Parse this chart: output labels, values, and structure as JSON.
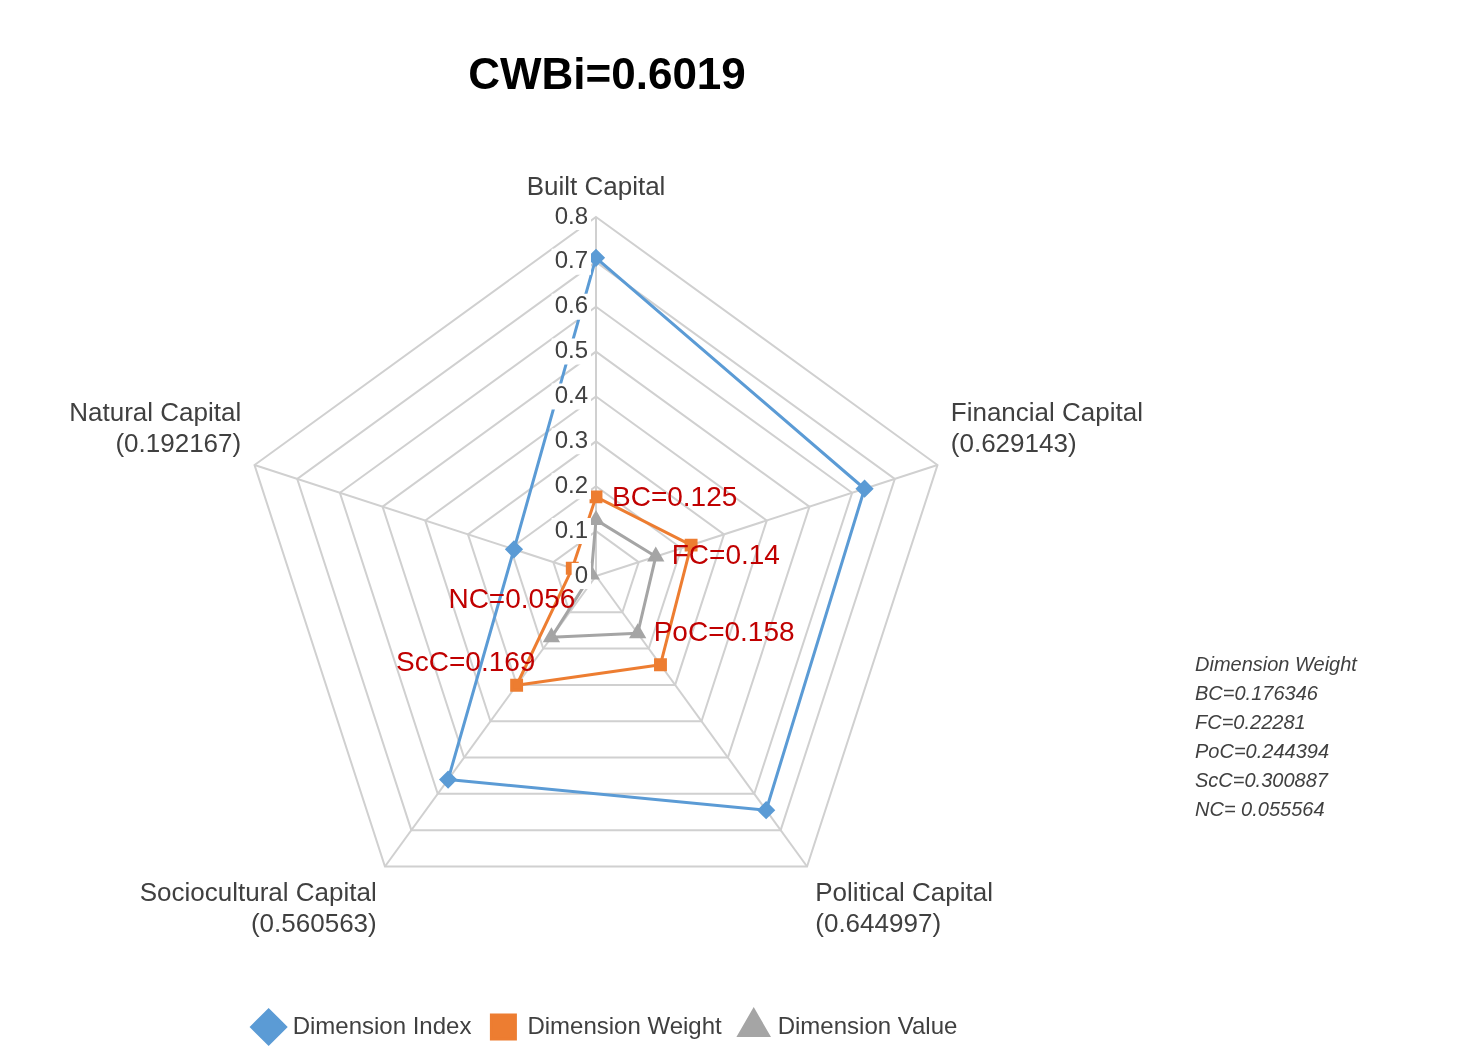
{
  "chart_data": {
    "type": "radar",
    "title": "CWBi=0.6019",
    "categories": [
      "Built Capital",
      "Financial Capital (0.629143)",
      "Political Capital (0.644997)",
      "Sociocultural Capital (0.560563)",
      "Natural Capital (0.192167)"
    ],
    "series": [
      {
        "name": "Dimension Index",
        "color": "#5b9bd5",
        "marker": "diamond",
        "values": [
          0.709,
          0.629143,
          0.644997,
          0.560563,
          0.192167
        ]
      },
      {
        "name": "Dimension Weight",
        "color": "#ed7d31",
        "marker": "square",
        "values": [
          0.176346,
          0.22281,
          0.244394,
          0.300887,
          0.055564
        ]
      },
      {
        "name": "Dimension Value",
        "color": "#a5a5a5",
        "marker": "triangle",
        "values": [
          0.125,
          0.14,
          0.158,
          0.169,
          0.011
        ]
      }
    ],
    "ylim": [
      0,
      0.8
    ],
    "yticks": [
      0,
      0.1,
      0.2,
      0.3,
      0.4,
      0.5,
      0.6,
      0.7,
      0.8
    ],
    "grid": true,
    "legend": "bottom",
    "annotations": [
      {
        "text": "BC=0.125",
        "x": "Built Capital"
      },
      {
        "text": "FC=0.14",
        "x": "Financial Capital (0.629143)"
      },
      {
        "text": "PoC=0.158",
        "x": "Political Capital (0.644997)"
      },
      {
        "text": "ScC=0.169",
        "x": "Sociocultural Capital (0.560563)"
      },
      {
        "text": "NC=0.056",
        "x": "Natural Capital (0.192167)"
      },
      "Dimension Weight",
      "BC=0.176346",
      "FC=0.22281",
      "PoC=0.244394",
      "ScC=0.300887",
      "NC= 0.055564"
    ]
  }
}
